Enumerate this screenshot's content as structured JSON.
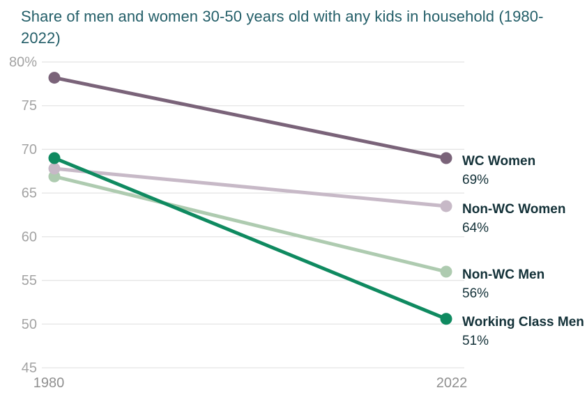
{
  "page": {
    "background_color": "#ffffff"
  },
  "title": {
    "text": "Share of men and women 30-50 years old with any kids in household (1980-2022)",
    "color": "#235e68"
  },
  "chart_data": {
    "type": "line",
    "title": "Share of men and women 30-50 years old with any kids in household (1980-2022)",
    "x": [
      1980,
      2022
    ],
    "x_tick_labels": [
      "1980",
      "2022"
    ],
    "xlabel": "",
    "ylabel": "",
    "ylim": [
      45,
      80
    ],
    "y_ticks": [
      45,
      50,
      55,
      60,
      65,
      70,
      75,
      80
    ],
    "y_tick_labels": [
      "45",
      "50",
      "55",
      "60",
      "65",
      "70",
      "75",
      "80%"
    ],
    "grid": "horizontal",
    "grid_color": "#e4e4e4",
    "tick_label_color": "#a3a3a3",
    "x_label_color": "#8f8f8f",
    "end_label_text_color": "#133138",
    "legend_position": "right-of-line-ends",
    "series": [
      {
        "name": "WC Women",
        "values": [
          78.2,
          69
        ],
        "end_label": "WC Women",
        "end_value_label": "69%",
        "color": "#7a6379"
      },
      {
        "name": "Non-WC Women",
        "values": [
          67.8,
          63.5
        ],
        "end_label": "Non-WC Women",
        "end_value_label": "64%",
        "color": "#c7b9c7"
      },
      {
        "name": "Non-WC Men",
        "values": [
          66.9,
          56
        ],
        "end_label": "Non-WC Men",
        "end_value_label": "56%",
        "color": "#aecbb0"
      },
      {
        "name": "Working Class Men",
        "values": [
          69,
          50.6
        ],
        "end_label": "Working Class Men",
        "end_value_label": "51%",
        "color": "#0f8a60"
      }
    ]
  }
}
